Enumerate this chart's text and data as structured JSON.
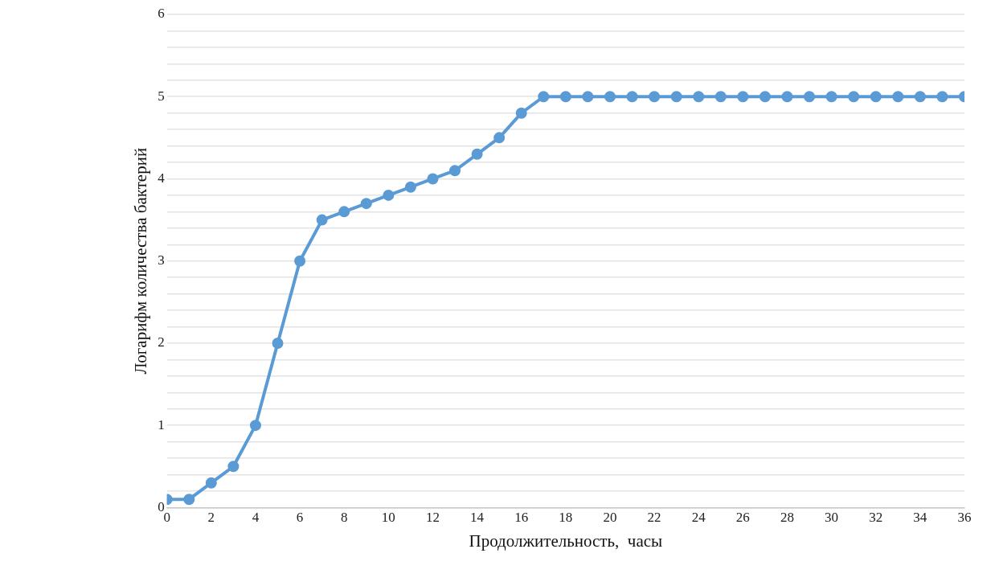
{
  "chart_data": {
    "type": "line",
    "xlabel": "Продолжительность,  часы",
    "ylabel": "Логарифм количества бактерий",
    "x": [
      0,
      1,
      2,
      3,
      4,
      5,
      6,
      7,
      8,
      9,
      10,
      11,
      12,
      13,
      14,
      15,
      16,
      17,
      18,
      19,
      20,
      21,
      22,
      23,
      24,
      25,
      26,
      27,
      28,
      29,
      30,
      31,
      32,
      33,
      34,
      35,
      36
    ],
    "series": [
      {
        "color": "#5b9bd5",
        "values": [
          0.1,
          0.1,
          0.3,
          0.5,
          1,
          2,
          3,
          3.5,
          3.6,
          3.7,
          3.8,
          3.9,
          4,
          4.1,
          4.3,
          4.5,
          4.8,
          5,
          5,
          5,
          5,
          5,
          5,
          5,
          5,
          5,
          5,
          5,
          5,
          5,
          5,
          5,
          5,
          5,
          5,
          5,
          5
        ]
      }
    ],
    "xlim": [
      0,
      36
    ],
    "xticks": [
      0,
      2,
      4,
      6,
      8,
      10,
      12,
      14,
      16,
      18,
      20,
      22,
      24,
      26,
      28,
      30,
      32,
      34,
      36
    ],
    "ylim": [
      0,
      6
    ],
    "yticks": [
      0,
      {
        "value": 0.2,
        "label": null
      },
      {
        "value": 0.4,
        "label": null
      },
      {
        "value": 0.6,
        "label": null
      },
      {
        "value": 0.8,
        "label": null
      },
      1,
      {
        "value": 1.2,
        "label": null
      },
      {
        "value": 1.4,
        "label": null
      },
      {
        "value": 1.6,
        "label": null
      },
      {
        "value": 1.8,
        "label": null
      },
      2,
      {
        "value": 2.2,
        "label": null
      },
      {
        "value": 2.4,
        "label": null
      },
      {
        "value": 2.6,
        "label": null
      },
      {
        "value": 2.8,
        "label": null
      },
      3,
      {
        "value": 3.2,
        "label": null
      },
      {
        "value": 3.4,
        "label": null
      },
      {
        "value": 3.6,
        "label": null
      },
      {
        "value": 3.8,
        "label": null
      },
      4,
      {
        "value": 4.2,
        "label": null
      },
      {
        "value": 4.4,
        "label": null
      },
      {
        "value": 4.6,
        "label": null
      },
      {
        "value": 4.8,
        "label": null
      },
      5,
      {
        "value": 5.2,
        "label": null
      },
      {
        "value": 5.4,
        "label": null
      },
      {
        "value": 5.6,
        "label": null
      },
      {
        "value": 5.8,
        "label": null
      },
      6
    ],
    "grid": "y",
    "marker": "circle",
    "line_style": "solid"
  }
}
